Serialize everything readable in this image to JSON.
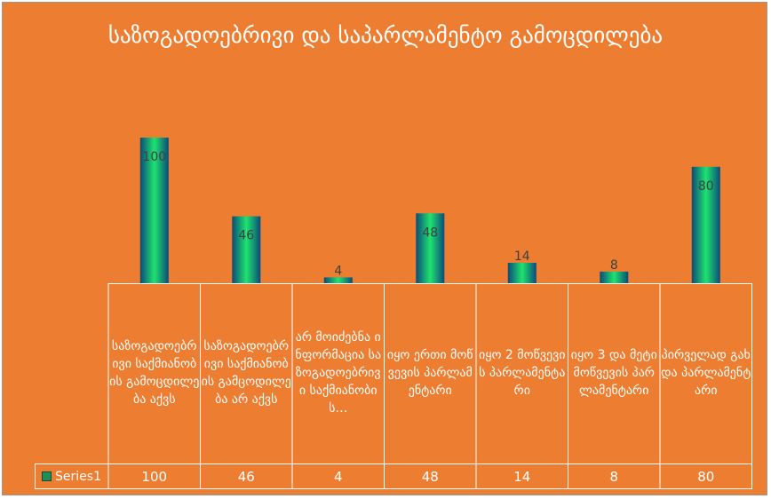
{
  "chart_data": {
    "type": "bar",
    "title": "საზოგადოებრივი  და საპარლამენტო გამოცდილება",
    "categories": [
      "საზოგადოებრივი საქმიანობის გამოცდილება აქვს",
      "საზოგადოებრივი საქმიანობის გამცოდილება არ აქვს",
      "არ მოიძებნა ინფორმაცია საზოგადოებრივი საქმიანობის…",
      "იყო ერთი მოწვევის პარლამენტარი",
      "იყო 2 მოწვევის პარლამენტარი",
      "იყო 3 და მეტი მოწვევის პარლამენტარი",
      "პირველად გახდა პარლამენტარი"
    ],
    "series": [
      {
        "name": "Series1",
        "values": [
          100,
          46,
          4,
          48,
          14,
          8,
          80
        ]
      }
    ],
    "ylim": [
      0,
      100
    ],
    "grid": false,
    "data_labels": true,
    "legend_placement": "data-table",
    "colors": {
      "background": "#ED7D31",
      "bar_center": "#1ee36e",
      "bar_edge": "#0b4a7a",
      "text": "#ffffff",
      "label": "#404040"
    }
  }
}
